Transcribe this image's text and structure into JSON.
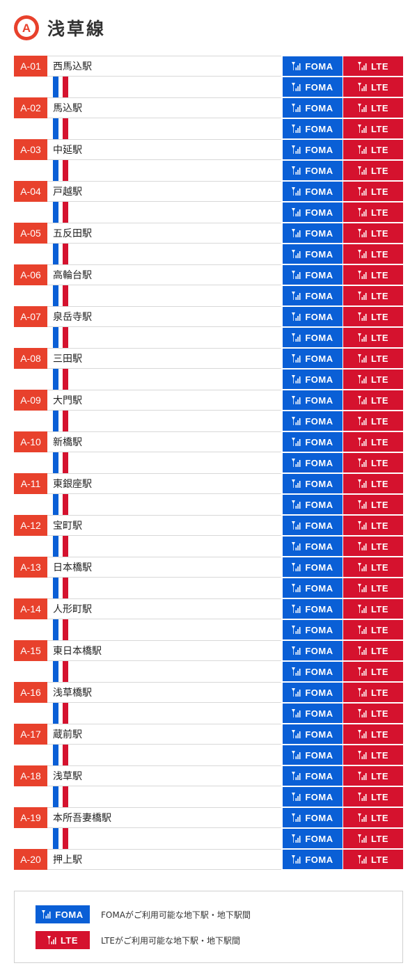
{
  "line": {
    "badge_letter": "A",
    "name": "浅草線",
    "color": "#e8412c"
  },
  "chips": {
    "foma_label": "FOMA",
    "lte_label": "LTE",
    "foma_color": "#0a5fd6",
    "lte_color": "#d5122e",
    "icon": "antenna-signal-icon"
  },
  "stations": [
    {
      "code": "A-01",
      "name": "西馬込駅"
    },
    {
      "code": "A-02",
      "name": "馬込駅"
    },
    {
      "code": "A-03",
      "name": "中延駅"
    },
    {
      "code": "A-04",
      "name": "戸越駅"
    },
    {
      "code": "A-05",
      "name": "五反田駅"
    },
    {
      "code": "A-06",
      "name": "高輪台駅"
    },
    {
      "code": "A-07",
      "name": "泉岳寺駅"
    },
    {
      "code": "A-08",
      "name": "三田駅"
    },
    {
      "code": "A-09",
      "name": "大門駅"
    },
    {
      "code": "A-10",
      "name": "新橋駅"
    },
    {
      "code": "A-11",
      "name": "東銀座駅"
    },
    {
      "code": "A-12",
      "name": "宝町駅"
    },
    {
      "code": "A-13",
      "name": "日本橋駅"
    },
    {
      "code": "A-14",
      "name": "人形町駅"
    },
    {
      "code": "A-15",
      "name": "東日本橋駅"
    },
    {
      "code": "A-16",
      "name": "浅草橋駅"
    },
    {
      "code": "A-17",
      "name": "蔵前駅"
    },
    {
      "code": "A-18",
      "name": "浅草駅"
    },
    {
      "code": "A-19",
      "name": "本所吾妻橋駅"
    },
    {
      "code": "A-20",
      "name": "押上駅"
    }
  ],
  "legend": {
    "foma_desc": "FOMAがご利用可能な地下駅・地下駅間",
    "lte_desc": "LTEがご利用可能な地下駅・地下駅間"
  }
}
